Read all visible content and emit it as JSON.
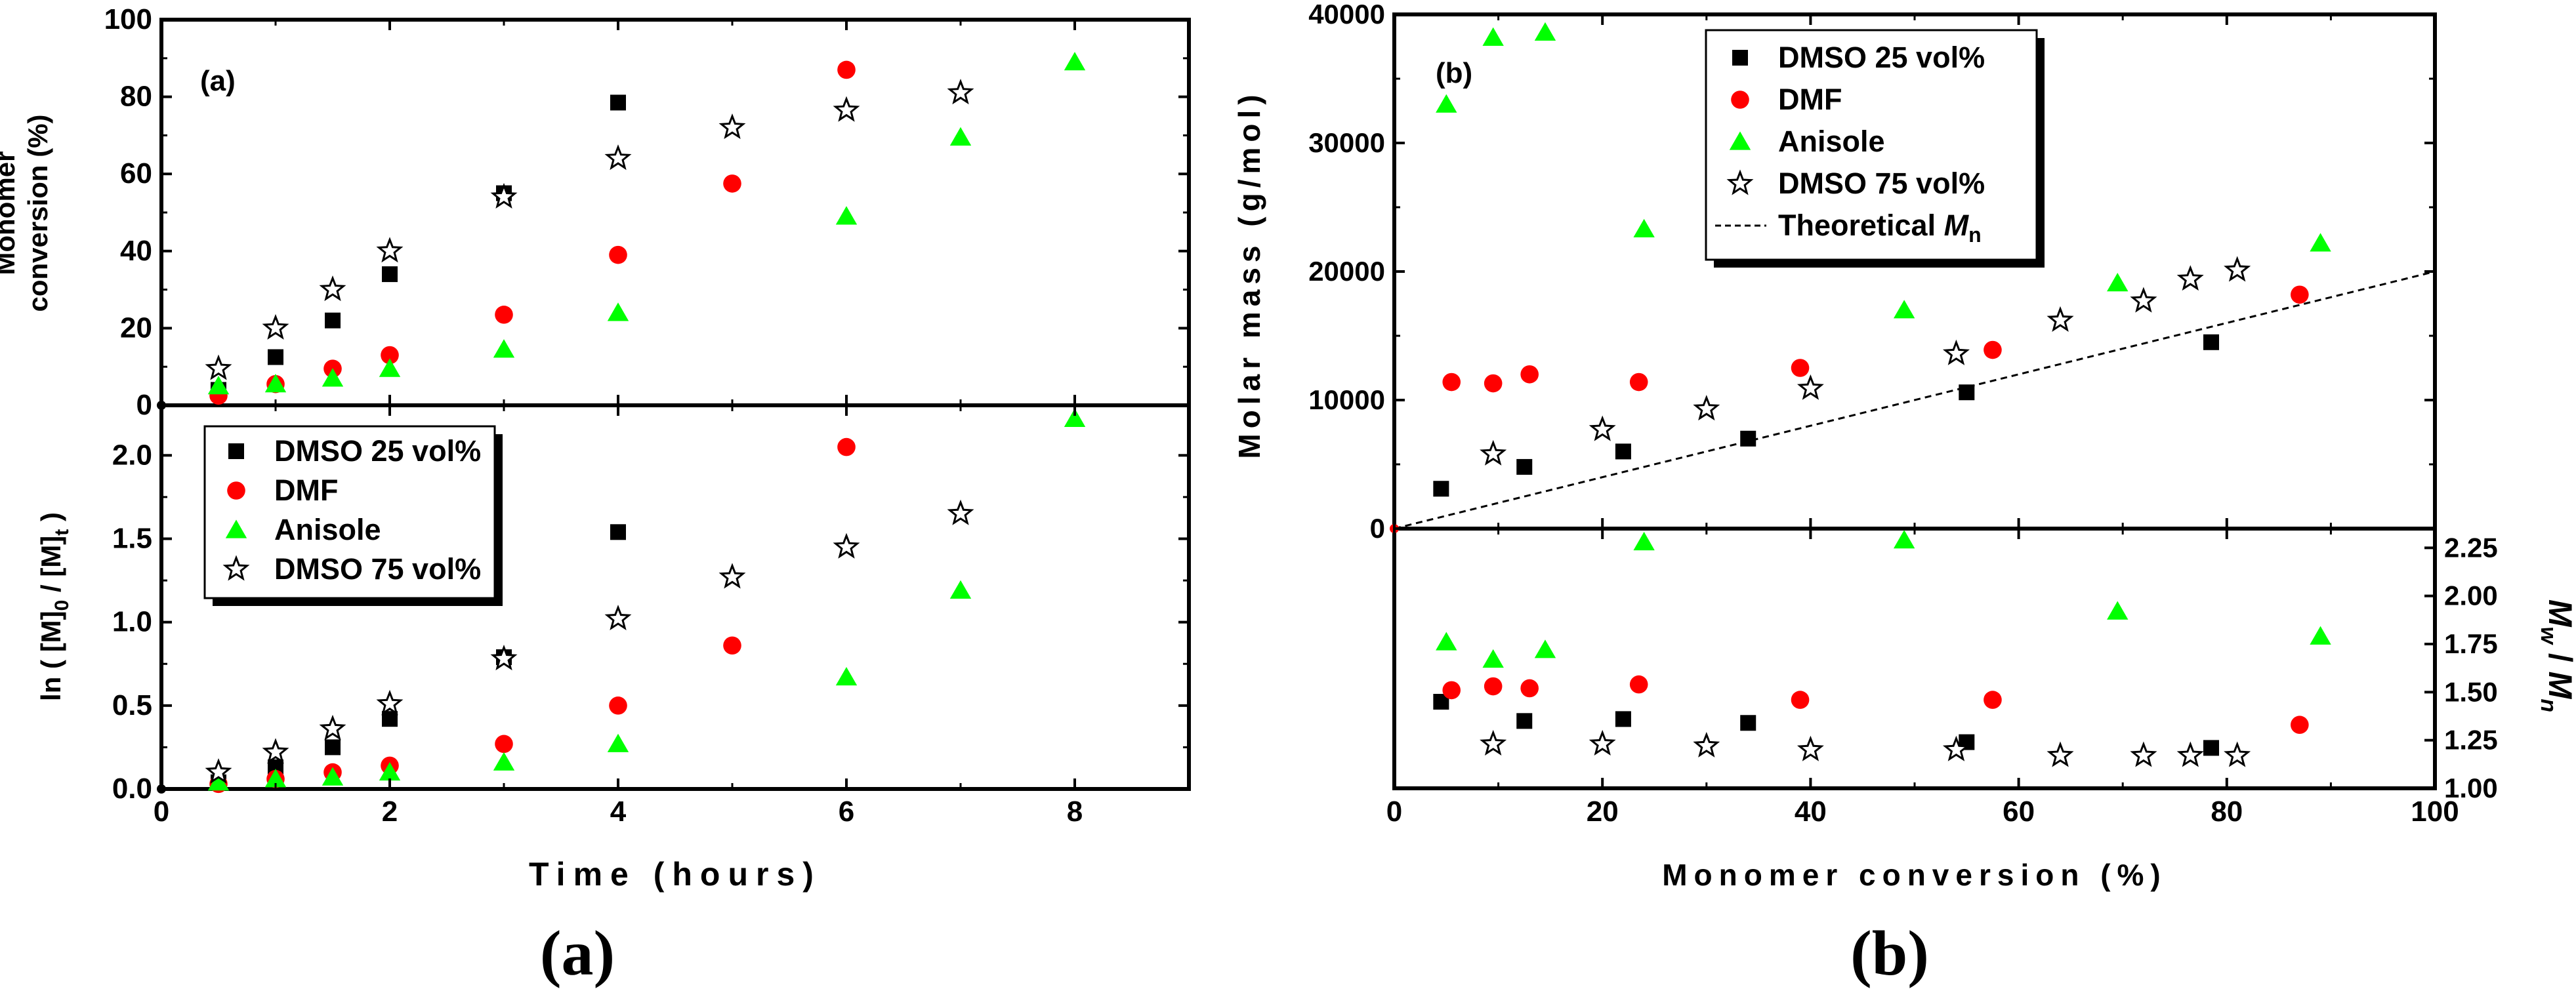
{
  "figure_captions": {
    "left": "(a)",
    "right": "(b)"
  },
  "colors": {
    "dmso25": "#000000",
    "dmf": "#ff0000",
    "anisole": "#00ff00",
    "dmso75": "#000000"
  },
  "legend": {
    "dmso25": "DMSO 25 vol%",
    "dmf": "DMF",
    "anisole": "Anisole",
    "dmso75": "DMSO 75 vol%",
    "theoretical_prefix": "Theoretical ",
    "theoretical_symbol": "M",
    "theoretical_sub": "n"
  },
  "chart_data": [
    {
      "type": "scatter",
      "panel_label": "(a)",
      "title": "",
      "xlabel": "Time (hours)",
      "ylabel": "Monomer conversion (%)",
      "ylabel_lines": [
        "Monomer",
        "conversion (%)"
      ],
      "xlim": [
        0,
        9
      ],
      "ylim": [
        0,
        100
      ],
      "x_ticks": [
        0,
        2,
        4,
        6,
        8
      ],
      "y_ticks": [
        0,
        20,
        40,
        60,
        80,
        100
      ],
      "series": [
        {
          "key": "dmso25",
          "name": "DMSO 25 vol%",
          "marker": "square",
          "x": [
            0.5,
            1,
            1.5,
            2,
            3,
            4
          ],
          "y": [
            4,
            12.5,
            22,
            34,
            55,
            78.5
          ]
        },
        {
          "key": "dmf",
          "name": "DMF",
          "marker": "circle",
          "x": [
            0.5,
            1,
            1.5,
            2,
            3,
            4,
            5,
            6
          ],
          "y": [
            2.5,
            5.5,
            9.5,
            13,
            23.5,
            39,
            57.5,
            87
          ]
        },
        {
          "key": "anisole",
          "name": "Anisole",
          "marker": "triangle",
          "x": [
            0.5,
            1,
            1.5,
            2,
            3,
            4,
            6,
            7,
            8
          ],
          "y": [
            5,
            5.5,
            7,
            9.5,
            14.5,
            24,
            49,
            69.5,
            89
          ]
        },
        {
          "key": "dmso75",
          "name": "DMSO 75 vol%",
          "marker": "star",
          "x": [
            0.5,
            1,
            1.5,
            2,
            3,
            4,
            5,
            6,
            7
          ],
          "y": [
            9.5,
            20,
            30,
            40,
            54,
            64,
            72,
            76.5,
            81
          ]
        }
      ]
    },
    {
      "type": "scatter",
      "title": "",
      "xlabel": "Time (hours)",
      "ylabel": "ln ( [M]0 / [M]t )",
      "ylabel_parts": {
        "a": "ln ( [M]",
        "sub0": "0",
        "b": " / [M]",
        "subt": "t",
        "c": " )"
      },
      "xlim": [
        0,
        9
      ],
      "ylim": [
        0,
        2.3
      ],
      "x_ticks": [
        0,
        2,
        4,
        6,
        8
      ],
      "y_ticks": [
        0.0,
        0.5,
        1.0,
        1.5,
        2.0
      ],
      "y_tick_labels": [
        "0.0",
        "0.5",
        "1.0",
        "1.5",
        "2.0"
      ],
      "legend_location": "upper-left",
      "series": [
        {
          "key": "dmso25",
          "name": "DMSO 25 vol%",
          "marker": "square",
          "x": [
            0.5,
            1,
            1.5,
            2,
            3,
            4
          ],
          "y": [
            0.04,
            0.13,
            0.25,
            0.42,
            0.79,
            1.54
          ]
        },
        {
          "key": "dmf",
          "name": "DMF",
          "marker": "circle",
          "x": [
            0.5,
            1,
            1.5,
            2,
            3,
            4,
            5,
            6
          ],
          "y": [
            0.03,
            0.06,
            0.1,
            0.14,
            0.27,
            0.5,
            0.86,
            2.05
          ]
        },
        {
          "key": "anisole",
          "name": "Anisole",
          "marker": "triangle",
          "x": [
            0.5,
            1,
            1.5,
            2,
            3,
            4,
            6,
            7,
            8
          ],
          "y": [
            0.04,
            0.06,
            0.07,
            0.1,
            0.16,
            0.27,
            0.67,
            1.19,
            2.22
          ]
        },
        {
          "key": "dmso75",
          "name": "DMSO 75 vol%",
          "marker": "star",
          "x": [
            0.5,
            1,
            1.5,
            2,
            3,
            4,
            5,
            6,
            7
          ],
          "y": [
            0.1,
            0.22,
            0.36,
            0.51,
            0.78,
            1.02,
            1.27,
            1.45,
            1.65
          ]
        }
      ]
    },
    {
      "type": "scatter",
      "panel_label": "(b)",
      "title": "",
      "xlabel": "Monomer conversion (%)",
      "ylabel": "Molar mass (g/mol)",
      "xlim": [
        0,
        100
      ],
      "ylim": [
        0,
        40000
      ],
      "x_ticks": [
        0,
        20,
        40,
        60,
        80,
        100
      ],
      "y_ticks": [
        0,
        10000,
        20000,
        30000,
        40000
      ],
      "legend_location": "top-center",
      "series": [
        {
          "key": "dmso25",
          "name": "DMSO 25 vol%",
          "marker": "square",
          "x": [
            4.5,
            12.5,
            22,
            34,
            55,
            78.5
          ],
          "y": [
            3100,
            4800,
            6000,
            7000,
            10600,
            14500
          ]
        },
        {
          "key": "dmf",
          "name": "DMF",
          "marker": "circle",
          "x": [
            5.5,
            9.5,
            13,
            23.5,
            39,
            57.5,
            87
          ],
          "y": [
            11400,
            11300,
            12000,
            11400,
            12500,
            13900,
            18200
          ]
        },
        {
          "key": "anisole",
          "name": "Anisole",
          "marker": "triangle",
          "x": [
            5,
            9.5,
            14.5,
            24,
            49,
            69.5,
            89
          ],
          "y": [
            33000,
            38200,
            38600,
            23300,
            17000,
            19100,
            22200
          ]
        },
        {
          "key": "dmso75",
          "name": "DMSO 75 vol%",
          "marker": "star",
          "x": [
            9.5,
            20,
            30,
            40,
            54,
            64,
            72,
            76.5,
            81
          ],
          "y": [
            5800,
            7700,
            9300,
            10900,
            13600,
            16200,
            17700,
            19400,
            20100
          ]
        },
        {
          "key": "theoretical",
          "name": "Theoretical Mn",
          "marker": "dashed-line",
          "x": [
            0,
            100
          ],
          "y": [
            0,
            20000
          ]
        }
      ]
    },
    {
      "type": "scatter",
      "title": "",
      "xlabel": "Monomer conversion (%)",
      "ylabel": "Mw / Mn",
      "ylabel_parts": {
        "m1": "M",
        "w": "w",
        "slash": " / ",
        "m2": "M",
        "n": "n"
      },
      "y_axis_side": "right",
      "xlim": [
        0,
        100
      ],
      "ylim": [
        1.0,
        2.35
      ],
      "x_ticks": [
        0,
        20,
        40,
        60,
        80,
        100
      ],
      "x_tick_labels": [
        "0",
        "20",
        "40",
        "60",
        "80",
        "100"
      ],
      "y_ticks": [
        1.0,
        1.25,
        1.5,
        1.75,
        2.0,
        2.25
      ],
      "y_tick_labels": [
        "1.00",
        "1.25",
        "1.50",
        "1.75",
        "2.00",
        "2.25"
      ],
      "series": [
        {
          "key": "dmso25",
          "name": "DMSO 25 vol%",
          "marker": "square",
          "x": [
            4.5,
            12.5,
            22,
            34,
            55,
            78.5
          ],
          "y": [
            1.45,
            1.35,
            1.36,
            1.34,
            1.24,
            1.21
          ]
        },
        {
          "key": "dmf",
          "name": "DMF",
          "marker": "circle",
          "x": [
            5.5,
            9.5,
            13,
            23.5,
            39,
            57.5,
            87
          ],
          "y": [
            1.51,
            1.53,
            1.52,
            1.54,
            1.46,
            1.46,
            1.33
          ]
        },
        {
          "key": "anisole",
          "name": "Anisole",
          "marker": "triangle",
          "x": [
            5,
            9.5,
            14.5,
            24,
            49,
            69.5,
            89
          ],
          "y": [
            1.76,
            1.67,
            1.72,
            2.28,
            2.29,
            1.92,
            1.79
          ]
        },
        {
          "key": "dmso75",
          "name": "DMSO 75 vol%",
          "marker": "star",
          "x": [
            9.5,
            20,
            30,
            40,
            54,
            64,
            72,
            76.5,
            81
          ],
          "y": [
            1.23,
            1.23,
            1.22,
            1.2,
            1.2,
            1.17,
            1.17,
            1.17,
            1.17
          ]
        }
      ]
    }
  ]
}
